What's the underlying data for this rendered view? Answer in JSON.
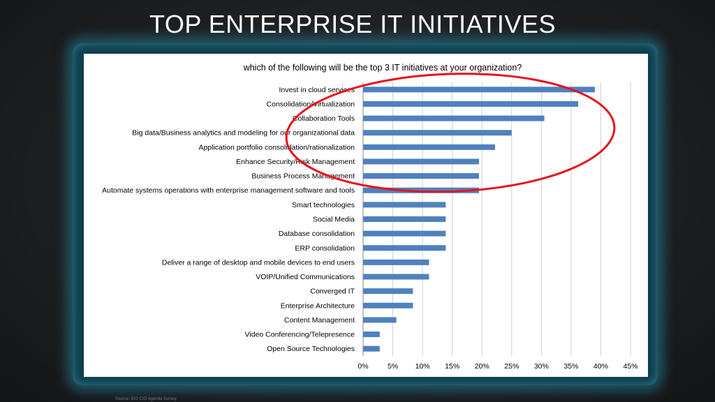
{
  "slide": {
    "title": "TOP ENTERPRISE IT INITIATIVES",
    "source": "Source: IDG CIO Agenda Survey"
  },
  "chart_data": {
    "type": "bar",
    "orientation": "horizontal",
    "title": "which of the following will be the top 3 IT initiatives at your organization?",
    "categories": [
      "Invest in cloud services",
      "Consolidation/Virtualization",
      "Collaboration Tools",
      "Big data/Business analytics  and modeling for our organizational  data",
      "Application portfolio consolidation/rationalization",
      "Enhance Security/Risk Management",
      "Business Process Management",
      "Automate systems operations with enterprise management software and tools",
      "Smart technologies",
      "Social Media",
      "Database consolidation",
      "ERP consolidation",
      "Deliver a range of desktop and mobile devices to end users",
      "VOIP/Unified Communications",
      "Converged IT",
      "Enterprise Architecture",
      "Content Management",
      "Video Conferencing/Telepresence",
      "Open Source Technologies"
    ],
    "values": [
      39,
      36.2,
      30.5,
      25,
      22.2,
      19.5,
      19.5,
      19.5,
      13.9,
      13.9,
      13.9,
      13.9,
      11.1,
      11.1,
      8.4,
      8.4,
      5.6,
      2.8,
      2.8
    ],
    "xlim": [
      0,
      45
    ],
    "xticks": [
      "0%",
      "5%",
      "10%",
      "15%",
      "20%",
      "25%",
      "30%",
      "35%",
      "40%",
      "45%"
    ],
    "grid": true,
    "bar_color": "#4f81bd",
    "highlight_color": "#e8111b",
    "highlighted_count": 7
  }
}
